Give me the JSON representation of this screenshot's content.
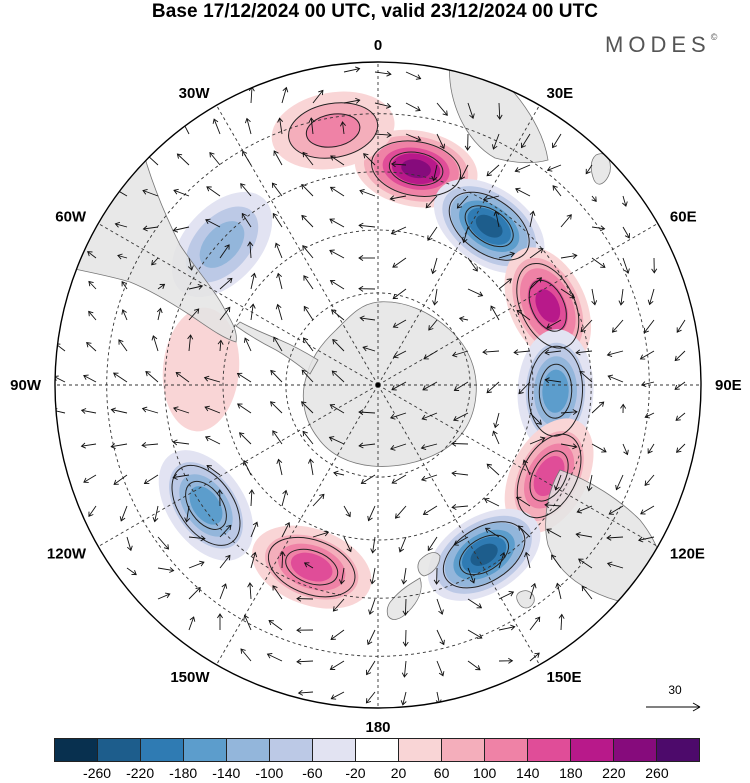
{
  "title": "Base 17/12/2024 00 UTC, valid 23/12/2024 00 UTC",
  "brand": {
    "name": "MODES",
    "mark": "©"
  },
  "longitude_labels": [
    {
      "text": "0",
      "deg": 0
    },
    {
      "text": "30E",
      "deg": 30
    },
    {
      "text": "60E",
      "deg": 60
    },
    {
      "text": "90E",
      "deg": 90
    },
    {
      "text": "120E",
      "deg": 120
    },
    {
      "text": "150E",
      "deg": 150
    },
    {
      "text": "180",
      "deg": 180
    },
    {
      "text": "150W",
      "deg": 210
    },
    {
      "text": "120W",
      "deg": 240
    },
    {
      "text": "90W",
      "deg": 270
    },
    {
      "text": "60W",
      "deg": 300
    },
    {
      "text": "30W",
      "deg": 330
    }
  ],
  "vector_scale": {
    "label": "30"
  },
  "colorbar": {
    "ticks": [
      "-260",
      "-220",
      "-180",
      "-140",
      "-100",
      "-60",
      "-20",
      "20",
      "60",
      "100",
      "140",
      "180",
      "220",
      "260"
    ],
    "colors": [
      "#08304f",
      "#1d5d8c",
      "#2f7bb3",
      "#5c9dcc",
      "#93b6db",
      "#bcc9e6",
      "#e2e3f2",
      "#ffffff",
      "#f9d5d6",
      "#f4aebb",
      "#ef82a6",
      "#e04d98",
      "#b8198a",
      "#860b7c",
      "#4d0a6b"
    ]
  },
  "map_style": {
    "land_color": "#e4e4e4",
    "coast_color": "#777777",
    "grid_color": "#333333"
  },
  "anomaly_centers": [
    {
      "lon": 10,
      "r": 0.68,
      "value": 220
    },
    {
      "lon": 35,
      "r": 0.6,
      "value": -240
    },
    {
      "lon": 65,
      "r": 0.58,
      "value": 180
    },
    {
      "lon": 92,
      "r": 0.55,
      "value": -160
    },
    {
      "lon": 118,
      "r": 0.6,
      "value": 170
    },
    {
      "lon": 148,
      "r": 0.62,
      "value": -220
    },
    {
      "lon": 200,
      "r": 0.6,
      "value": 140
    },
    {
      "lon": 235,
      "r": 0.65,
      "value": -160
    },
    {
      "lon": 275,
      "r": 0.55,
      "value": 40
    },
    {
      "lon": 312,
      "r": 0.65,
      "value": -110
    },
    {
      "lon": 350,
      "r": 0.8,
      "value": 130
    }
  ]
}
